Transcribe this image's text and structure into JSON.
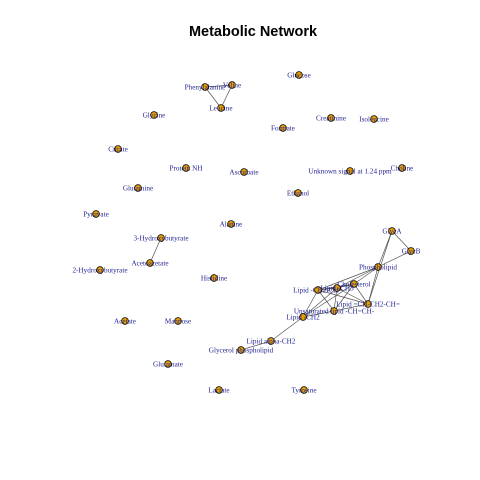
{
  "chart_data": {
    "type": "network",
    "title": "Metabolic Network",
    "node_color": "#E69F00",
    "label_color": "#1f1f8f",
    "edge_color": "#555555",
    "nodes": [
      "Valine",
      "Phenylalanine",
      "Leucine",
      "Glucose",
      "Glycine",
      "Creatinine",
      "Isoleucine",
      "Formate",
      "Citrate",
      "Protein NH",
      "Ascorbate",
      "Unknown signal at 1.24 ppm",
      "Choline",
      "Glutamine",
      "Ethanol",
      "Pyruvate",
      "Alanine",
      "GlycA",
      "GlycB",
      "3-Hydroxybutyrate",
      "Phospholipid",
      "Acetoacetate",
      "2-Hydroxybutyrate",
      "Histidine",
      "Lipid -CH2-CH=",
      "Lipid -CH3",
      "Cholesterol",
      "Lipid =CH-CH2-CH=",
      "Unsaturated lipid -CH=CH-",
      "Lipid -CH2",
      "Acetate",
      "Mannose",
      "Lipid alpha-CH2",
      "Glycerol phospholipid",
      "Glutamate",
      "Lactate",
      "Tyrosine"
    ],
    "edges": [
      [
        "Valine",
        "Phenylalanine"
      ],
      [
        "Valine",
        "Leucine"
      ],
      [
        "Phenylalanine",
        "Leucine"
      ],
      [
        "3-Hydroxybutyrate",
        "Acetoacetate"
      ],
      [
        "GlycA",
        "GlycB"
      ],
      [
        "GlycA",
        "Phospholipid"
      ],
      [
        "GlycA",
        "Lipid =CH-CH2-CH="
      ],
      [
        "GlycB",
        "Phospholipid"
      ],
      [
        "Phospholipid",
        "Lipid -CH2-CH="
      ],
      [
        "Phospholipid",
        "Lipid -CH3"
      ],
      [
        "Phospholipid",
        "Cholesterol"
      ],
      [
        "Phospholipid",
        "Lipid =CH-CH2-CH="
      ],
      [
        "Lipid -CH2-CH=",
        "Lipid -CH3"
      ],
      [
        "Lipid -CH2-CH=",
        "Cholesterol"
      ],
      [
        "Lipid -CH2-CH=",
        "Lipid -CH2"
      ],
      [
        "Lipid -CH2-CH=",
        "Unsaturated lipid -CH=CH-"
      ],
      [
        "Lipid -CH2-CH=",
        "Lipid =CH-CH2-CH="
      ],
      [
        "Lipid -CH3",
        "Cholesterol"
      ],
      [
        "Lipid -CH3",
        "Unsaturated lipid -CH=CH-"
      ],
      [
        "Lipid -CH3",
        "Lipid -CH2"
      ],
      [
        "Lipid -CH3",
        "Lipid =CH-CH2-CH="
      ],
      [
        "Cholesterol",
        "Lipid =CH-CH2-CH="
      ],
      [
        "Cholesterol",
        "Unsaturated lipid -CH=CH-"
      ],
      [
        "Cholesterol",
        "Lipid -CH2"
      ],
      [
        "Lipid =CH-CH2-CH=",
        "Unsaturated lipid -CH=CH-"
      ],
      [
        "Unsaturated lipid -CH=CH-",
        "Lipid -CH2"
      ],
      [
        "Lipid -CH2",
        "Lipid alpha-CH2"
      ],
      [
        "Lipid alpha-CH2",
        "Glycerol phospholipid"
      ]
    ]
  }
}
